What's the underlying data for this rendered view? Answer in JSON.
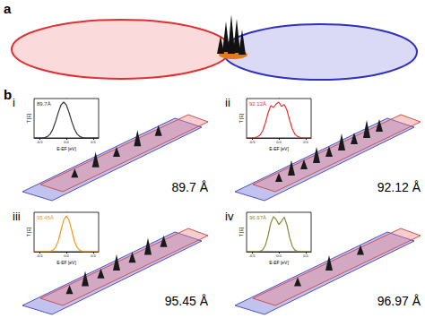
{
  "figure": {
    "panel_labels": [
      "a",
      "b"
    ],
    "subpanels": [
      {
        "label": "i",
        "distance": "89.7 Å"
      },
      {
        "label": "ii",
        "distance": "92.12 Å"
      },
      {
        "label": "iii",
        "distance": "95.45 Å"
      },
      {
        "label": "iv",
        "distance": "96.97 Å"
      }
    ]
  },
  "chart_data": [
    {
      "type": "line",
      "title": "89.7Å",
      "xlabel": "E-EF [eV]",
      "ylabel": "T [E]",
      "color": "#333333",
      "x": [
        -0.6,
        -0.55,
        -0.5,
        -0.45,
        -0.4,
        -0.35,
        -0.3,
        -0.25,
        -0.2,
        -0.15,
        -0.1,
        -0.05,
        0,
        0.05,
        0.1,
        0.15,
        0.2,
        0.25,
        0.3,
        0.35,
        0.4,
        0.45,
        0.5,
        0.55,
        0.6
      ],
      "values": [
        0,
        0,
        0,
        0,
        0.01,
        0.04,
        0.11,
        0.25,
        0.46,
        0.71,
        0.92,
        1,
        0.92,
        0.71,
        0.46,
        0.25,
        0.11,
        0.04,
        0.01,
        0,
        0,
        0,
        0,
        0,
        0
      ],
      "xlim": [
        -0.6,
        0.6
      ],
      "xticks": [
        -0.5,
        {
          "value": 0,
          "label": "0.0"
        },
        0.5
      ],
      "ylim": [
        0,
        1.1
      ],
      "tick_labels": "x"
    },
    {
      "type": "line",
      "title": "92.12Å",
      "xlabel": "E-EF [eV]",
      "ylabel": "T [E]",
      "color": "#e8322e",
      "x": [
        -0.6,
        -0.55,
        -0.5,
        -0.45,
        -0.4,
        -0.35,
        -0.3,
        -0.25,
        -0.2,
        -0.15,
        -0.1,
        -0.05,
        0,
        0.05,
        0.1,
        0.15,
        0.2,
        0.25,
        0.3,
        0.35,
        0.4,
        0.45,
        0.5,
        0.55,
        0.6
      ],
      "values": [
        0,
        0,
        0,
        0.01,
        0.03,
        0.08,
        0.2,
        0.42,
        0.7,
        0.9,
        0.85,
        0.95,
        1,
        0.88,
        0.93,
        0.78,
        0.5,
        0.25,
        0.1,
        0.04,
        0.01,
        0,
        0,
        0,
        0
      ],
      "xlim": [
        -0.6,
        0.6
      ],
      "xticks": [
        -0.5,
        {
          "value": 0,
          "label": "0.0"
        },
        0.5
      ],
      "ylim": [
        0,
        1.1
      ],
      "tick_labels": "x"
    },
    {
      "type": "line",
      "title": "95.45Å",
      "xlabel": "E-EF [eV]",
      "ylabel": "T [E]",
      "color": "#f39a1e",
      "x": [
        -0.6,
        -0.55,
        -0.5,
        -0.45,
        -0.4,
        -0.35,
        -0.3,
        -0.25,
        -0.2,
        -0.15,
        -0.1,
        -0.05,
        0,
        0.05,
        0.1,
        0.15,
        0.2,
        0.25,
        0.3,
        0.35,
        0.4,
        0.45,
        0.5,
        0.55,
        0.6
      ],
      "values": [
        0,
        0,
        0,
        0,
        0,
        0,
        0.01,
        0.04,
        0.12,
        0.3,
        0.6,
        0.88,
        1,
        0.88,
        0.6,
        0.3,
        0.12,
        0.04,
        0.01,
        0,
        0,
        0,
        0,
        0,
        0
      ],
      "xlim": [
        -0.6,
        0.6
      ],
      "xticks": [
        -0.5,
        {
          "value": 0,
          "label": "0.0"
        },
        0.5
      ],
      "ylim": [
        0,
        1.1
      ],
      "tick_labels": "x"
    },
    {
      "type": "line",
      "title": "96.97Å",
      "xlabel": "E-EF [eV]",
      "ylabel": "T [E]",
      "color": "#8b8b3b",
      "x": [
        -0.6,
        -0.55,
        -0.5,
        -0.45,
        -0.4,
        -0.35,
        -0.3,
        -0.25,
        -0.2,
        -0.15,
        -0.1,
        -0.05,
        0,
        0.05,
        0.1,
        0.15,
        0.2,
        0.25,
        0.3,
        0.35,
        0.4,
        0.45,
        0.5,
        0.55,
        0.6
      ],
      "values": [
        0,
        0,
        0,
        0,
        0,
        0.01,
        0.05,
        0.18,
        0.45,
        0.8,
        0.98,
        0.9,
        0.76,
        0.85,
        0.97,
        0.75,
        0.4,
        0.15,
        0.04,
        0.01,
        0,
        0,
        0,
        0,
        0
      ],
      "xlim": [
        -0.6,
        0.6
      ],
      "xticks": [
        -0.5,
        {
          "value": 0,
          "label": "0.0"
        },
        0.5
      ],
      "ylim": [
        0,
        1.1
      ],
      "tick_labels": "x"
    }
  ]
}
